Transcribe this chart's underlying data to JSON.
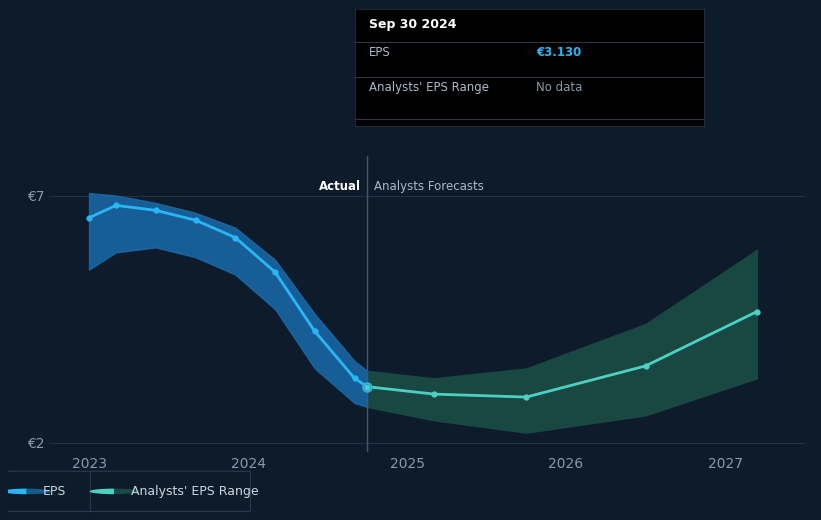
{
  "bg_color": "#0d1b2a",
  "plot_bg_color": "#0d1b2a",
  "grid_color": "#253a52",
  "ylabel_7": "€7",
  "ylabel_2": "€2",
  "xlabel_years": [
    "2023",
    "2024",
    "2025",
    "2026",
    "2027"
  ],
  "divider_x": 2024.75,
  "actual_label": "Actual",
  "forecast_label": "Analysts Forecasts",
  "tooltip_date": "Sep 30 2024",
  "tooltip_eps_label": "EPS",
  "tooltip_eps_value": "€3.130",
  "tooltip_range_label": "Analysts' EPS Range",
  "tooltip_range_value": "No data",
  "eps_line_color": "#29b6f6",
  "eps_band_color": "#1a6aaa",
  "forecast_line_color": "#4dd0c4",
  "forecast_band_color": "#1a4a44",
  "actual_eps_x": [
    2023.0,
    2023.17,
    2023.42,
    2023.67,
    2023.92,
    2024.17,
    2024.42,
    2024.67,
    2024.75
  ],
  "actual_eps_y": [
    6.55,
    6.8,
    6.7,
    6.5,
    6.15,
    5.45,
    4.25,
    3.3,
    3.13
  ],
  "actual_band_upper": [
    7.05,
    7.0,
    6.85,
    6.65,
    6.35,
    5.7,
    4.6,
    3.65,
    3.45
  ],
  "actual_band_lower": [
    5.5,
    5.85,
    5.95,
    5.75,
    5.4,
    4.7,
    3.5,
    2.8,
    2.72
  ],
  "forecast_eps_x": [
    2024.75,
    2025.17,
    2025.75,
    2026.5,
    2027.2
  ],
  "forecast_eps_y": [
    3.13,
    2.98,
    2.92,
    3.55,
    4.65
  ],
  "forecast_band_upper": [
    3.45,
    3.3,
    3.5,
    4.4,
    5.9
  ],
  "forecast_band_lower": [
    2.72,
    2.45,
    2.2,
    2.55,
    3.3
  ],
  "ylim": [
    1.8,
    7.8
  ],
  "xlim": [
    2022.75,
    2027.5
  ],
  "legend_eps_color": "#29b6f6",
  "legend_range_color": "#4dd0c4",
  "tick_label_color": "#8899aa",
  "label_text_color": "#aabbcc",
  "white": "#ffffff",
  "divider_line_color": "#3a5a7a",
  "tooltip_bg": "#000000",
  "tooltip_border": "#333344",
  "tooltip_divider": "#333344"
}
